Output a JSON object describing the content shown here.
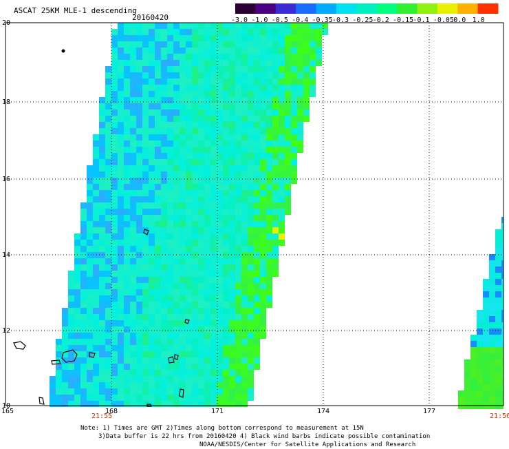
{
  "header": {
    "title": "ASCAT 25KM MLE-1 descending",
    "date": "20160420"
  },
  "colorbar": {
    "labels": [
      "-3.0",
      "-1.0",
      "-0.5",
      "-0.4",
      "-0.35",
      "-0.3",
      "-0.25",
      "-0.2",
      "-0.15",
      "-0.1",
      "-0.05",
      "0.0",
      "1.0"
    ],
    "colors": [
      "#2a0033",
      "#4b0082",
      "#3a2bd6",
      "#1a6bff",
      "#00aaff",
      "#00e0f0",
      "#00f0c0",
      "#00ff80",
      "#30f030",
      "#90f010",
      "#e8f000",
      "#ffb000",
      "#ff3000"
    ]
  },
  "axes": {
    "lat_labels": [
      "20",
      "18",
      "16",
      "14",
      "12",
      "10"
    ],
    "lon_labels": [
      "165",
      "168",
      "171",
      "174",
      "177"
    ],
    "time_start": "21:55",
    "time_end": "21:56"
  },
  "notes": {
    "line1": "Note: 1) Times are GMT 2)Times along bottom correspond to measurement at 15N",
    "line2": "3)Data buffer is 22 hrs from 20160420 4) Black wind barbs indicate possible contamination",
    "line3": "NOAA/NESDIS/Center for Satellite Applications and Research"
  }
}
